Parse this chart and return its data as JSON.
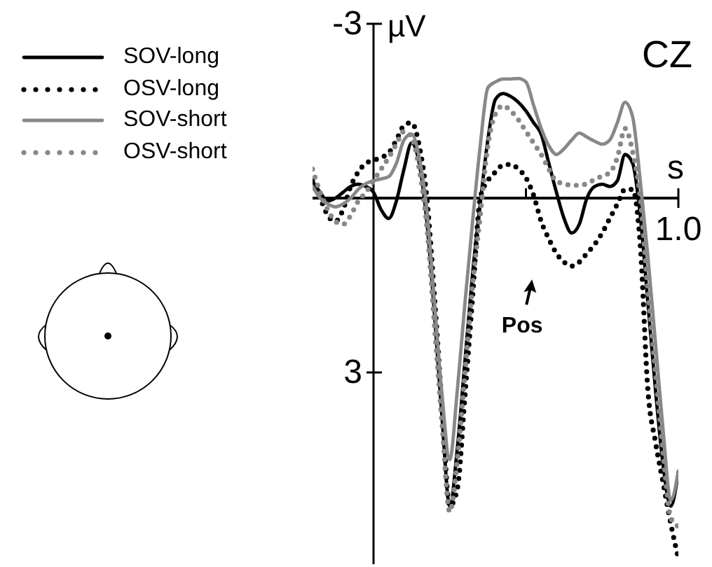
{
  "chart_data": {
    "type": "line",
    "title": "CZ",
    "xlabel": "s",
    "ylabel": "µV",
    "categories": [
      null,
      null,
      null,
      null,
      null,
      null,
      null,
      null,
      null,
      null,
      null,
      null,
      null,
      null,
      null,
      null,
      null,
      null,
      null,
      null,
      null,
      null,
      null,
      null,
      null,
      null,
      null,
      null,
      null,
      null,
      null,
      null,
      null,
      null,
      null,
      null,
      null,
      null,
      null,
      null,
      null,
      null,
      null,
      null,
      null,
      null,
      null,
      null,
      null
    ],
    "ylim": [
      6.3,
      -3
    ],
    "yticks": [
      {
        "value": -3,
        "label": "-3"
      },
      {
        "value": 3,
        "label": "3"
      }
    ],
    "grid": false,
    "legend": "top left",
    "marker": "none",
    "annotations": [
      "1.0",
      "Pos"
    ],
    "series": [
      {
        "name": "SOV-long",
        "color": "#000000",
        "line_style": "solid",
        "values": [
          -0.29,
          -0.1,
          0.05,
          0.0,
          -0.1,
          -0.2,
          -0.24,
          -0.2,
          -0.1,
          0.2,
          0.35,
          0.05,
          -0.5,
          -0.95,
          -0.6,
          0.4,
          2.0,
          3.8,
          5.3,
          4.3,
          2.8,
          1.3,
          0.1,
          -1.0,
          -1.7,
          -1.8,
          -1.75,
          -1.65,
          -1.5,
          -1.3,
          -1.1,
          -0.6,
          -0.1,
          0.35,
          0.6,
          0.45,
          0.0,
          -0.2,
          -0.24,
          -0.2,
          -0.3,
          -0.75,
          -0.6,
          0.3,
          1.8,
          3.3,
          4.6,
          5.3,
          4.7
        ]
      },
      {
        "name": "OSV-long",
        "color": "#000000",
        "line_style": "dotted",
        "values": [
          -0.3,
          0.0,
          0.3,
          0.4,
          0.2,
          -0.2,
          -0.45,
          -0.6,
          -0.65,
          -0.7,
          -0.78,
          -1.0,
          -1.25,
          -1.3,
          -0.9,
          0.0,
          1.7,
          3.6,
          5.3,
          5.0,
          3.4,
          1.7,
          0.0,
          -0.3,
          -0.45,
          -0.57,
          -0.58,
          -0.5,
          -0.35,
          -0.05,
          0.4,
          0.7,
          0.95,
          1.1,
          1.17,
          1.1,
          0.95,
          0.8,
          0.6,
          0.35,
          0.1,
          -0.15,
          -0.15,
          0.8,
          3.3,
          4.2,
          4.9,
          5.6,
          6.2
        ]
      },
      {
        "name": "SOV-short",
        "color": "#888888",
        "line_style": "solid",
        "values": [
          -0.2,
          0.0,
          0.1,
          0.15,
          0.1,
          0.0,
          -0.15,
          -0.25,
          -0.3,
          -0.33,
          -0.37,
          -0.6,
          -1.0,
          -1.1,
          -0.7,
          0.2,
          1.8,
          3.4,
          4.5,
          3.3,
          1.8,
          0.4,
          -0.9,
          -1.9,
          -2.0,
          -2.05,
          -2.05,
          -2.06,
          -2.0,
          -1.6,
          -1.2,
          -0.9,
          -0.75,
          -0.85,
          -1.0,
          -1.12,
          -1.05,
          -0.98,
          -0.93,
          -1.0,
          -1.3,
          -1.65,
          -1.4,
          -0.3,
          1.0,
          2.5,
          4.0,
          5.2,
          4.7
        ]
      },
      {
        "name": "OSV-short",
        "color": "#888888",
        "line_style": "dotted",
        "values": [
          -0.5,
          -0.1,
          0.2,
          0.4,
          0.45,
          0.3,
          0.05,
          -0.1,
          -0.3,
          -0.5,
          -0.7,
          -0.93,
          -1.15,
          -1.05,
          -0.5,
          0.5,
          2.2,
          3.9,
          5.4,
          4.5,
          3.0,
          1.5,
          0.3,
          -0.9,
          -1.45,
          -1.59,
          -1.5,
          -1.35,
          -1.15,
          -0.95,
          -0.75,
          -0.5,
          -0.29,
          -0.25,
          -0.22,
          -0.22,
          -0.25,
          -0.32,
          -0.38,
          -0.44,
          -0.7,
          -1.2,
          -0.8,
          0.0,
          1.6,
          3.0,
          4.4,
          5.5,
          5.65
        ]
      }
    ]
  }
}
